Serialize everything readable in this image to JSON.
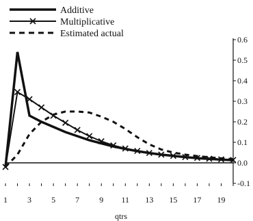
{
  "chart_data": {
    "type": "line",
    "xlabel": "qtrs",
    "ylabel": "",
    "title": "",
    "x_ticks": [
      1,
      3,
      5,
      7,
      9,
      11,
      13,
      15,
      17,
      19
    ],
    "xlim": [
      1,
      20
    ],
    "y_ticks": [
      "0.6",
      "0.5",
      "0.4",
      "0.3",
      "0.2",
      "0.1",
      "0.0",
      "-0.1"
    ],
    "ylim": [
      -0.1,
      0.6
    ],
    "y_axis_position": "right",
    "legend_position": "top-left",
    "series": [
      {
        "name": "Additive",
        "style": "thick-solid",
        "x": [
          1,
          2,
          3,
          4,
          5,
          6,
          7,
          8,
          9,
          10,
          11,
          12,
          13,
          14,
          15,
          16,
          17,
          18,
          19,
          20
        ],
        "values": [
          -0.02,
          0.54,
          0.23,
          0.2,
          0.175,
          0.15,
          0.13,
          0.11,
          0.095,
          0.08,
          0.068,
          0.057,
          0.048,
          0.04,
          0.034,
          0.028,
          0.023,
          0.019,
          0.016,
          0.013
        ]
      },
      {
        "name": "Multiplicative",
        "style": "solid-x-markers",
        "x": [
          1,
          2,
          3,
          4,
          5,
          6,
          7,
          8,
          9,
          10,
          11,
          12,
          13,
          14,
          15,
          16,
          17,
          18,
          19,
          20
        ],
        "values": [
          -0.02,
          0.345,
          0.31,
          0.27,
          0.23,
          0.195,
          0.16,
          0.13,
          0.105,
          0.085,
          0.07,
          0.058,
          0.048,
          0.04,
          0.034,
          0.028,
          0.024,
          0.02,
          0.017,
          0.014
        ]
      },
      {
        "name": "Estimated actual",
        "style": "dashed",
        "x": [
          1,
          2,
          3,
          4,
          5,
          6,
          7,
          8,
          9,
          10,
          11,
          12,
          13,
          14,
          15,
          16,
          17,
          18,
          19,
          20
        ],
        "values": [
          -0.02,
          0.04,
          0.14,
          0.2,
          0.235,
          0.25,
          0.25,
          0.245,
          0.225,
          0.2,
          0.165,
          0.125,
          0.09,
          0.065,
          0.05,
          0.04,
          0.033,
          0.027,
          0.022,
          0.018
        ]
      }
    ]
  }
}
